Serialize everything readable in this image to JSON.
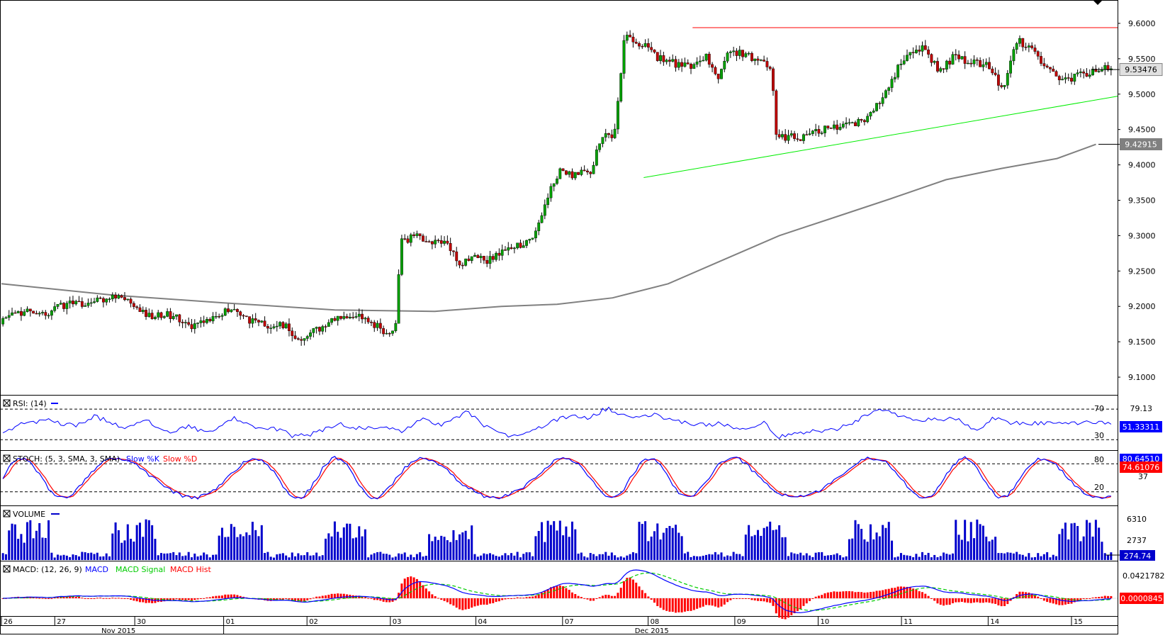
{
  "chart_data": {
    "type": "candlestick",
    "instrument_hint": "",
    "price_axis": {
      "ticks": [
        "9.6000",
        "9.5500",
        "9.5000",
        "9.4500",
        "9.4000",
        "9.3500",
        "9.3000",
        "9.2500",
        "9.2000",
        "9.1500",
        "9.1000"
      ],
      "range": [
        9.08,
        9.625
      ]
    },
    "current_price_label": "9.53476",
    "current_price": 9.53476,
    "ma_price_label": "9.42915",
    "ma_price": 9.42915,
    "resistance_level": 9.594,
    "support_line": {
      "from": {
        "x_frac": 0.578,
        "price": 9.382
      },
      "to": {
        "x_frac": 1.0,
        "price": 9.497
      }
    },
    "moving_average_points": [
      [
        0.0,
        9.232
      ],
      [
        0.1,
        9.216
      ],
      [
        0.2,
        9.205
      ],
      [
        0.3,
        9.195
      ],
      [
        0.39,
        9.193
      ],
      [
        0.45,
        9.2
      ],
      [
        0.5,
        9.203
      ],
      [
        0.55,
        9.212
      ],
      [
        0.6,
        9.232
      ],
      [
        0.65,
        9.266
      ],
      [
        0.7,
        9.3
      ],
      [
        0.75,
        9.326
      ],
      [
        0.8,
        9.352
      ],
      [
        0.85,
        9.379
      ],
      [
        0.9,
        9.395
      ],
      [
        0.95,
        9.409
      ],
      [
        0.985,
        9.429
      ]
    ],
    "price_anchors": [
      [
        0.0,
        9.175
      ],
      [
        0.01,
        9.19
      ],
      [
        0.05,
        9.195
      ],
      [
        0.07,
        9.19
      ],
      [
        0.11,
        9.21
      ],
      [
        0.13,
        9.2
      ],
      [
        0.16,
        9.215
      ],
      [
        0.19,
        9.21
      ],
      [
        0.2,
        9.2
      ],
      [
        0.22,
        9.185
      ],
      [
        0.25,
        9.19
      ],
      [
        0.29,
        9.17
      ],
      [
        0.31,
        9.18
      ],
      [
        0.34,
        9.195
      ],
      [
        0.36,
        9.185
      ],
      [
        0.37,
        9.18
      ],
      [
        0.3917,
        9.175
      ],
      [
        0.41,
        9.17
      ],
      [
        0.425,
        9.175
      ],
      [
        0.44,
        9.15
      ],
      [
        0.46,
        9.16
      ],
      [
        0.5,
        9.18
      ],
      [
        0.53,
        9.19
      ],
      [
        0.56,
        9.175
      ],
      [
        0.58,
        9.16
      ],
      [
        0.5917,
        9.175
      ],
      [
        0.59,
        9.19
      ],
      [
        0.6,
        9.29
      ],
      [
        0.62,
        9.3
      ],
      [
        0.65,
        9.29
      ],
      [
        0.67,
        9.285
      ],
      [
        0.69,
        9.26
      ],
      [
        0.71,
        9.275
      ],
      [
        0.73,
        9.265
      ],
      [
        0.75,
        9.28
      ],
      [
        0.78,
        9.285
      ],
      [
        0.8,
        9.3
      ],
      [
        0.82,
        9.36
      ],
      [
        0.84,
        9.395
      ],
      [
        0.86,
        9.385
      ],
      [
        0.885,
        9.39
      ],
      [
        0.9,
        9.44
      ],
      [
        0.92,
        9.445
      ],
      [
        0.935,
        9.585
      ],
      [
        0.96,
        9.57
      ],
      [
        0.98,
        9.555
      ],
      [
        1.0,
        9.545
      ]
    ],
    "price_anchors_day2": [
      [
        0.0,
        9.545
      ],
      [
        0.04,
        9.54
      ],
      [
        0.07,
        9.555
      ],
      [
        0.09,
        9.52
      ],
      [
        0.11,
        9.555
      ],
      [
        0.13,
        9.56
      ],
      [
        0.16,
        9.55
      ],
      [
        0.19,
        9.54
      ],
      [
        0.2,
        9.44
      ],
      [
        0.22,
        9.44
      ],
      [
        0.25,
        9.44
      ],
      [
        0.28,
        9.45
      ],
      [
        0.32,
        9.455
      ],
      [
        0.36,
        9.46
      ],
      [
        0.4,
        9.5
      ],
      [
        0.44,
        9.56
      ],
      [
        0.47,
        9.565
      ],
      [
        0.5,
        9.535
      ],
      [
        0.53,
        9.555
      ],
      [
        0.56,
        9.545
      ],
      [
        0.59,
        9.54
      ],
      [
        0.62,
        9.505
      ],
      [
        0.64,
        9.575
      ],
      [
        0.67,
        9.57
      ],
      [
        0.7,
        9.535
      ],
      [
        0.73,
        9.52
      ],
      [
        0.77,
        9.53
      ],
      [
        0.8,
        9.535
      ],
      [
        0.82,
        9.535
      ]
    ],
    "time_axis": {
      "day_labels": [
        "26",
        "27",
        "30",
        "01",
        "02",
        "03",
        "04",
        "07",
        "08",
        "09",
        "10",
        "11",
        "14",
        "15"
      ],
      "month_labels": [
        "Nov 2015",
        "Dec 2015"
      ]
    },
    "panels": [
      {
        "name": "RSI",
        "title": "RSI: (14)",
        "levels": [
          "70",
          "30"
        ],
        "value_label": "51.33311",
        "extra_label": "79.13",
        "anchors": [
          [
            0.0,
            36
          ],
          [
            0.03,
            52
          ],
          [
            0.07,
            55
          ],
          [
            0.11,
            48
          ],
          [
            0.14,
            61
          ],
          [
            0.18,
            46
          ],
          [
            0.22,
            55
          ],
          [
            0.25,
            39
          ],
          [
            0.28,
            47
          ],
          [
            0.31,
            39
          ],
          [
            0.35,
            58
          ],
          [
            0.38,
            44
          ],
          [
            0.41,
            45
          ],
          [
            0.44,
            34
          ],
          [
            0.47,
            38
          ],
          [
            0.51,
            51
          ],
          [
            0.54,
            44
          ],
          [
            0.57,
            48
          ],
          [
            0.6,
            42
          ],
          [
            0.63,
            57
          ],
          [
            0.66,
            49
          ],
          [
            0.7,
            67
          ],
          [
            0.73,
            45
          ],
          [
            0.76,
            36
          ],
          [
            0.79,
            37
          ],
          [
            0.82,
            52
          ],
          [
            0.85,
            61
          ],
          [
            0.88,
            58
          ],
          [
            0.91,
            72
          ],
          [
            0.93,
            61
          ],
          [
            0.96,
            60
          ],
          [
            0.98,
            63
          ],
          [
            1.0,
            58
          ]
        ],
        "anchors_day2": [
          [
            0.0,
            58
          ],
          [
            0.05,
            49
          ],
          [
            0.1,
            51
          ],
          [
            0.14,
            43
          ],
          [
            0.18,
            53
          ],
          [
            0.2,
            33
          ],
          [
            0.24,
            38
          ],
          [
            0.27,
            41
          ],
          [
            0.31,
            44
          ],
          [
            0.35,
            55
          ],
          [
            0.38,
            68
          ],
          [
            0.42,
            64
          ],
          [
            0.46,
            54
          ],
          [
            0.5,
            58
          ],
          [
            0.54,
            56
          ],
          [
            0.57,
            40
          ],
          [
            0.6,
            60
          ],
          [
            0.63,
            52
          ],
          [
            0.67,
            52
          ],
          [
            0.72,
            50
          ],
          [
            0.76,
            53
          ],
          [
            0.82,
            51
          ]
        ]
      },
      {
        "name": "STOCH",
        "title": "STOCH: (5, 3, SMA, 3, SMA)",
        "legend": [
          "Slow %K",
          "Slow %D"
        ],
        "levels": [
          "80",
          "20"
        ],
        "value_labels": [
          "80.64510",
          "74.61076"
        ],
        "extra_label": "37"
      },
      {
        "name": "VOLUME",
        "title": "VOLUME",
        "tick_labels": [
          "6310",
          "2737"
        ],
        "value_label": "274.74"
      },
      {
        "name": "MACD",
        "title": "MACD: (12, 26, 9)",
        "legend": [
          "MACD",
          "MACD Signal",
          "MACD Hist"
        ],
        "tick_label": "0.0421782",
        "value_label": "0.0000845"
      }
    ],
    "colors": {
      "bullish_candle": "#00a000",
      "bearish_candle": "#c00000",
      "wick": "#000000",
      "moving_average": "#808080",
      "resistance": "#ff0000",
      "support": "#00ee00",
      "rsi": "#0000ff",
      "stoch_k": "#0000ff",
      "stoch_d": "#ff0000",
      "volume": "#0000cc",
      "macd": "#0000ff",
      "macd_signal": "#00cc00",
      "macd_hist": "#ff0000"
    }
  }
}
